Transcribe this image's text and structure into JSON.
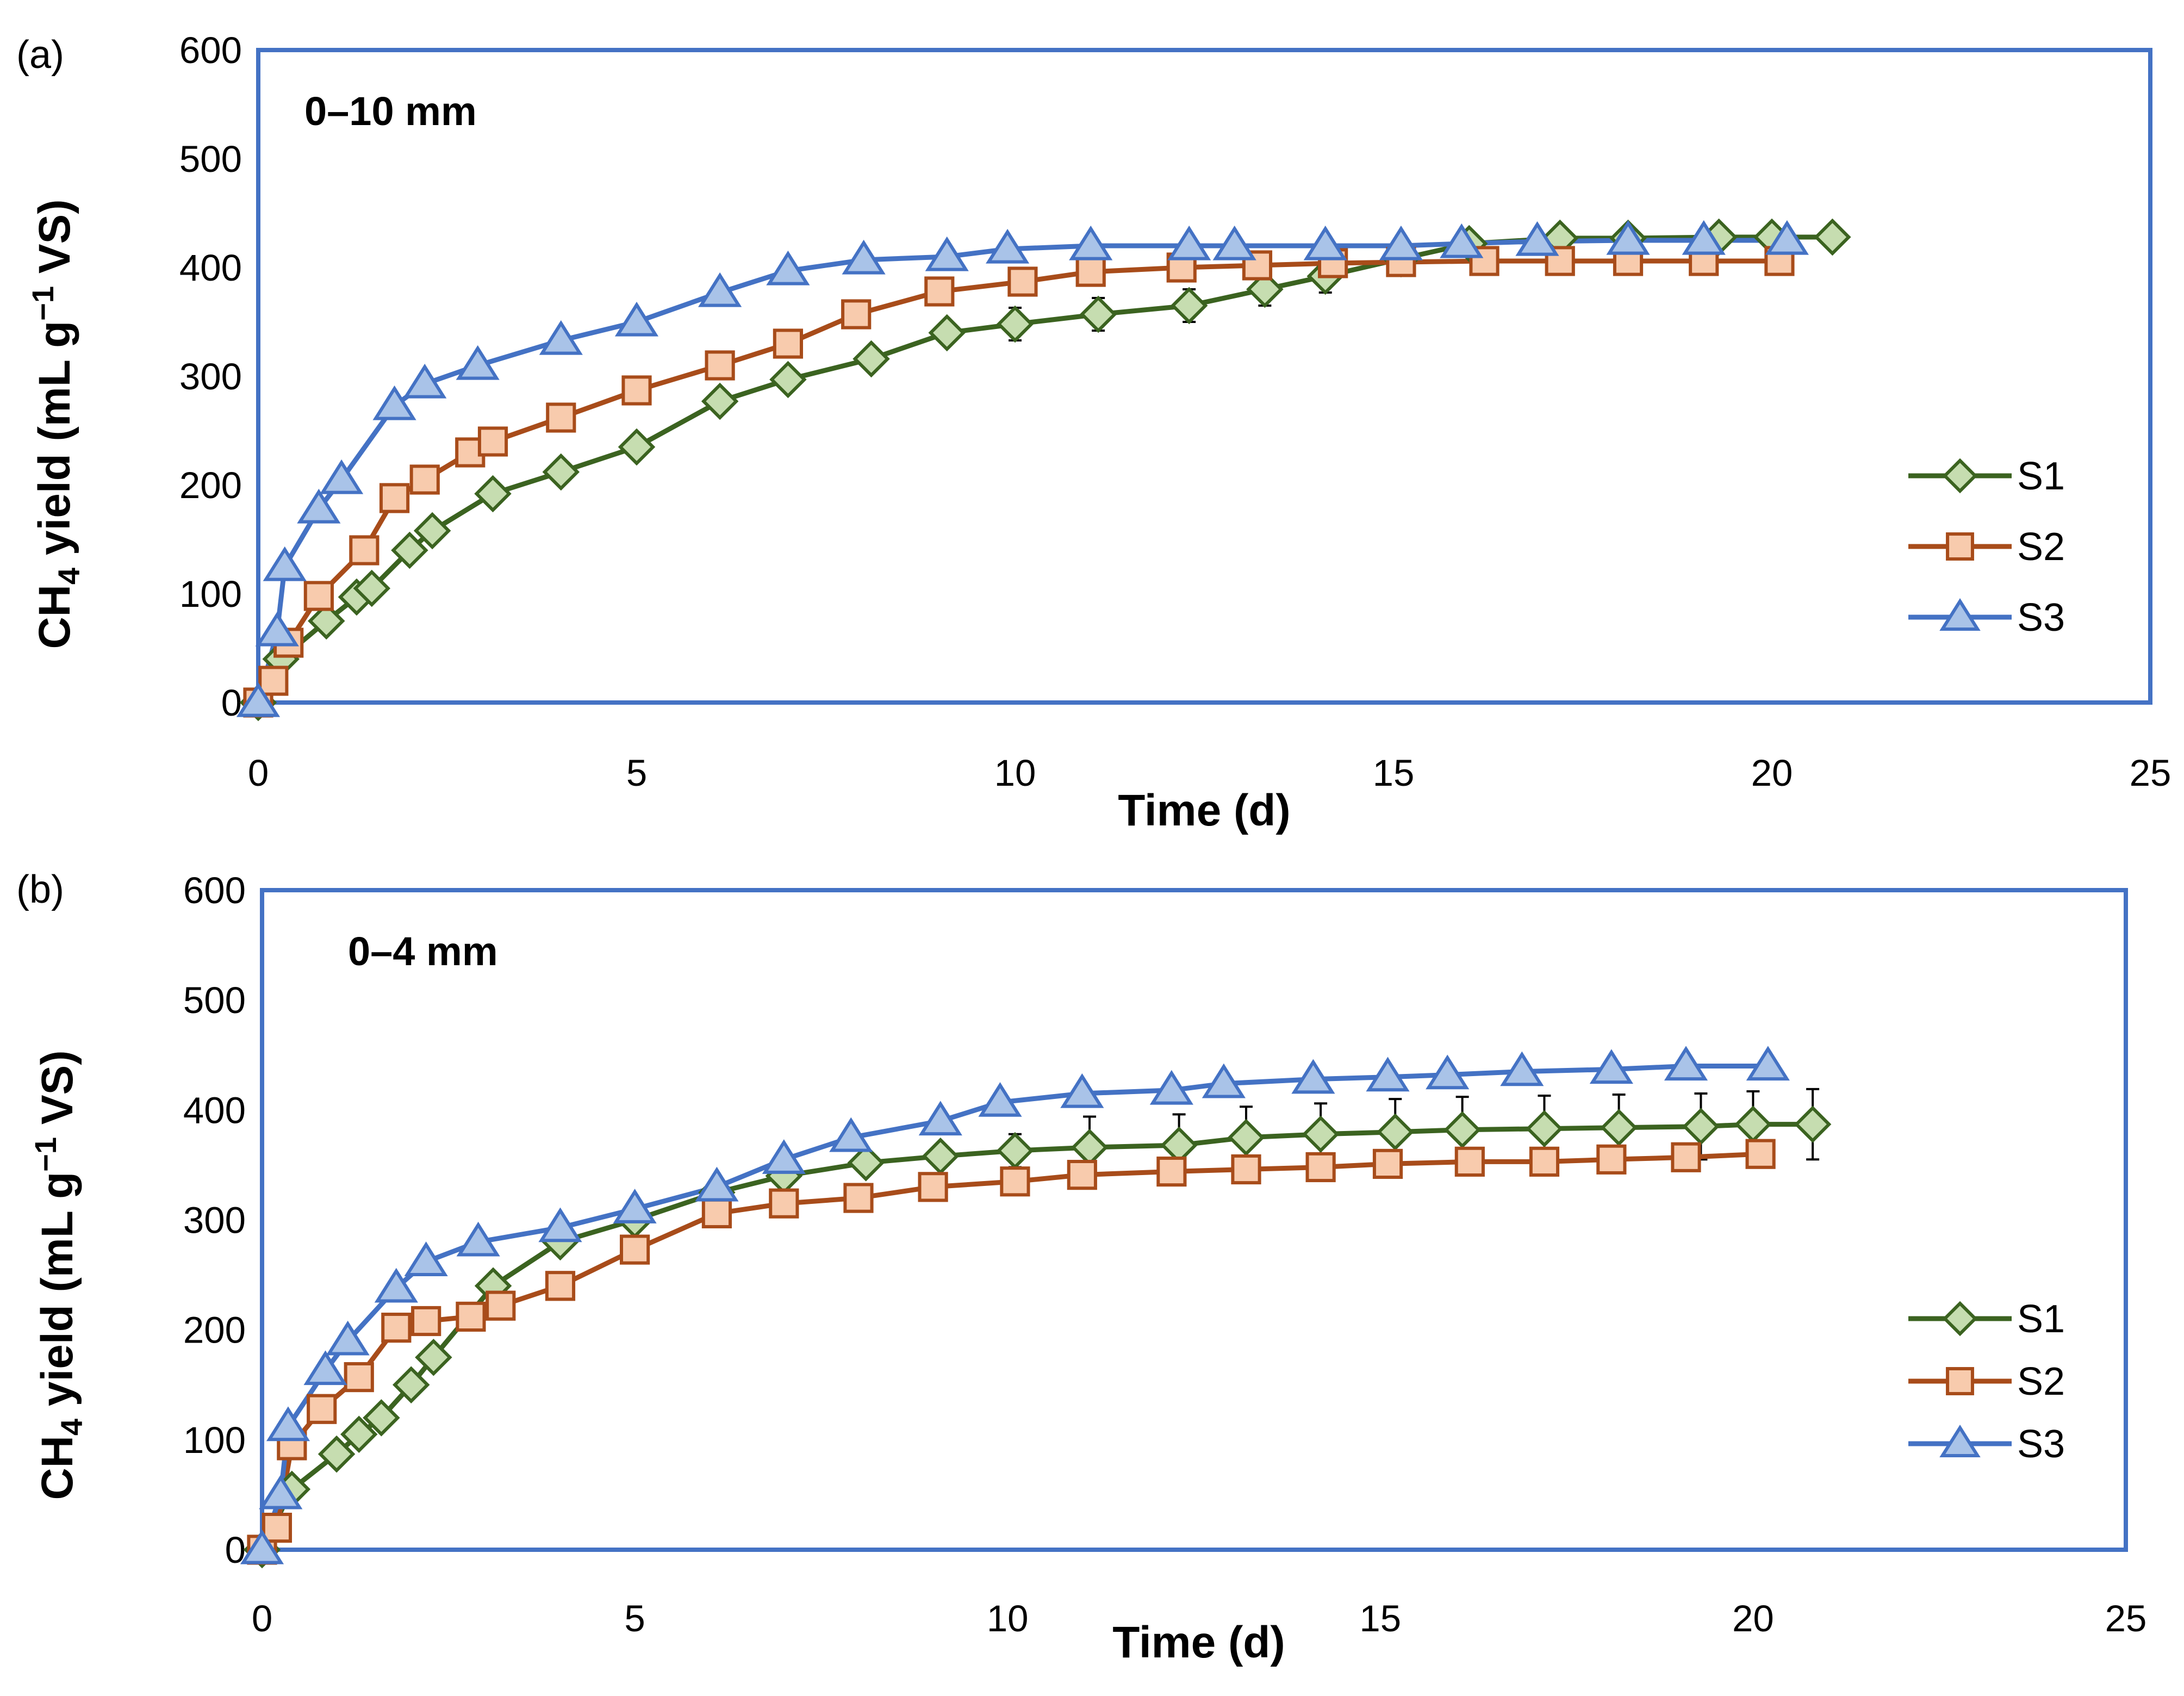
{
  "colors": {
    "frame": "#4472C4",
    "S1_line": "#3B6320",
    "S1_fill": "#C6DDB0",
    "S2_line": "#A84C1A",
    "S2_fill": "#F8CBAD",
    "S3_line": "#4472C4",
    "S3_fill": "#A9C3E8",
    "error_bar": "#000000"
  },
  "chart_data": [
    {
      "type": "line",
      "panel_label": "(a)",
      "annotation": "0–10 mm",
      "xlabel": "Time (d)",
      "ylabel": "CH4 yield (mL g−1 VS)",
      "ylabel_parts": {
        "pre": "CH",
        "sub": "4",
        "mid": " yield (mL g",
        "sup": "−1",
        "post": " VS)"
      },
      "xlim": [
        0,
        25
      ],
      "ylim": [
        0,
        600
      ],
      "x_ticks": [
        "0",
        "5",
        "10",
        "15",
        "20",
        "25"
      ],
      "y_ticks": [
        "0",
        "100",
        "200",
        "300",
        "400",
        "500",
        "600"
      ],
      "grid": false,
      "legend_position": "right",
      "series": [
        {
          "name": "S1",
          "marker": "diamond",
          "x": [
            0,
            0.3,
            0.9,
            1.3,
            1.5,
            2.0,
            2.3,
            3.1,
            4.0,
            5.0,
            6.1,
            7.0,
            8.1,
            9.1,
            10.0,
            11.1,
            12.3,
            13.3,
            14.1,
            15.1,
            16.0,
            17.2,
            18.1,
            19.3,
            20.0,
            20.8
          ],
          "y": [
            0,
            40,
            75,
            97,
            105,
            140,
            158,
            192,
            212,
            235,
            277,
            297,
            316,
            340,
            348,
            357,
            365,
            380,
            392,
            408,
            422,
            427,
            427,
            428,
            428,
            428
          ],
          "err": [
            0,
            0,
            0,
            0,
            0,
            0,
            0,
            0,
            0,
            0,
            0,
            0,
            0,
            0,
            15,
            15,
            15,
            15,
            15,
            5,
            5,
            5,
            5,
            5,
            5,
            5
          ]
        },
        {
          "name": "S2",
          "marker": "square",
          "x": [
            0,
            0.2,
            0.4,
            0.8,
            1.4,
            1.8,
            2.2,
            2.8,
            3.1,
            4.0,
            5.0,
            6.1,
            7.0,
            7.9,
            9.0,
            10.1,
            11.0,
            12.2,
            13.2,
            14.2,
            15.1,
            16.2,
            17.2,
            18.1,
            19.1,
            20.1
          ],
          "y": [
            0,
            20,
            55,
            98,
            140,
            188,
            205,
            230,
            240,
            262,
            287,
            310,
            330,
            357,
            378,
            387,
            396,
            400,
            402,
            404,
            405,
            406,
            406,
            406,
            406,
            406
          ],
          "err": [
            0,
            0,
            0,
            0,
            0,
            0,
            0,
            0,
            0,
            0,
            0,
            0,
            0,
            0,
            0,
            0,
            0,
            0,
            0,
            0,
            0,
            0,
            0,
            0,
            0,
            0
          ]
        },
        {
          "name": "S3",
          "marker": "triangle",
          "x": [
            0,
            0.25,
            0.35,
            0.8,
            1.1,
            1.8,
            2.2,
            2.9,
            4.0,
            5.0,
            6.1,
            7.0,
            8.0,
            9.1,
            9.9,
            11.0,
            12.3,
            12.9,
            14.1,
            15.1,
            15.9,
            16.9,
            18.1,
            19.1,
            20.2
          ],
          "y": [
            0,
            65,
            125,
            178,
            205,
            273,
            293,
            310,
            333,
            350,
            377,
            397,
            407,
            410,
            417,
            420,
            420,
            420,
            420,
            420,
            422,
            424,
            425,
            425,
            425
          ],
          "err": [
            0,
            0,
            0,
            0,
            0,
            0,
            0,
            0,
            0,
            0,
            0,
            0,
            0,
            0,
            0,
            0,
            0,
            0,
            0,
            0,
            0,
            0,
            0,
            0,
            0
          ]
        }
      ]
    },
    {
      "type": "line",
      "panel_label": "(b)",
      "annotation": "0–4 mm",
      "xlabel": "Time (d)",
      "ylabel": "CH4 yield (mL g−1 VS)",
      "ylabel_parts": {
        "pre": "CH",
        "sub": "4",
        "mid": " yield (mL g",
        "sup": "−1",
        "post": " VS)"
      },
      "xlim": [
        0,
        25
      ],
      "ylim": [
        0,
        600
      ],
      "x_ticks": [
        "0",
        "5",
        "10",
        "15",
        "20",
        "25"
      ],
      "y_ticks": [
        "0",
        "100",
        "200",
        "300",
        "400",
        "500",
        "600"
      ],
      "grid": false,
      "legend_position": "right",
      "series": [
        {
          "name": "S1",
          "marker": "diamond",
          "x": [
            0,
            0.4,
            1.0,
            1.3,
            1.6,
            2.0,
            2.3,
            3.1,
            4.0,
            5.0,
            6.1,
            7.0,
            8.1,
            9.1,
            10.1,
            11.1,
            12.3,
            13.2,
            14.2,
            15.2,
            16.1,
            17.2,
            18.2,
            19.3,
            20.0,
            20.8
          ],
          "y": [
            0,
            55,
            87,
            105,
            120,
            150,
            175,
            240,
            280,
            300,
            325,
            340,
            352,
            358,
            363,
            366,
            368,
            375,
            378,
            380,
            382,
            383,
            384,
            385,
            387,
            387
          ],
          "err": [
            0,
            0,
            0,
            0,
            0,
            0,
            0,
            0,
            0,
            0,
            0,
            0,
            0,
            0,
            15,
            28,
            28,
            28,
            28,
            30,
            30,
            30,
            30,
            30,
            30,
            32
          ]
        },
        {
          "name": "S2",
          "marker": "square",
          "x": [
            0,
            0.2,
            0.4,
            0.8,
            1.3,
            1.8,
            2.2,
            2.8,
            3.2,
            4.0,
            5.0,
            6.1,
            7.0,
            8.0,
            9.0,
            10.1,
            11.0,
            12.2,
            13.2,
            14.2,
            15.1,
            16.2,
            17.2,
            18.1,
            19.1,
            20.1
          ],
          "y": [
            0,
            20,
            95,
            128,
            157,
            202,
            208,
            212,
            222,
            240,
            273,
            306,
            315,
            320,
            330,
            335,
            341,
            344,
            346,
            348,
            351,
            353,
            353,
            355,
            357,
            360
          ],
          "err": [
            0,
            0,
            0,
            0,
            0,
            0,
            0,
            0,
            0,
            0,
            0,
            0,
            0,
            0,
            0,
            0,
            0,
            0,
            0,
            0,
            5,
            5,
            5,
            5,
            5,
            5
          ]
        },
        {
          "name": "S3",
          "marker": "triangle",
          "x": [
            0,
            0.25,
            0.35,
            0.85,
            1.15,
            1.8,
            2.2,
            2.9,
            4.0,
            5.0,
            6.1,
            7.0,
            7.9,
            9.1,
            9.9,
            11.0,
            12.2,
            12.9,
            14.1,
            15.1,
            15.9,
            16.9,
            18.1,
            19.1,
            20.2
          ],
          "y": [
            0,
            50,
            112,
            163,
            190,
            238,
            262,
            280,
            293,
            310,
            330,
            355,
            375,
            390,
            407,
            415,
            418,
            424,
            428,
            430,
            432,
            435,
            437,
            440,
            440
          ],
          "err": [
            0,
            0,
            0,
            0,
            0,
            0,
            0,
            0,
            0,
            0,
            0,
            0,
            0,
            0,
            0,
            0,
            0,
            0,
            0,
            0,
            0,
            0,
            0,
            0,
            0
          ]
        }
      ]
    }
  ]
}
